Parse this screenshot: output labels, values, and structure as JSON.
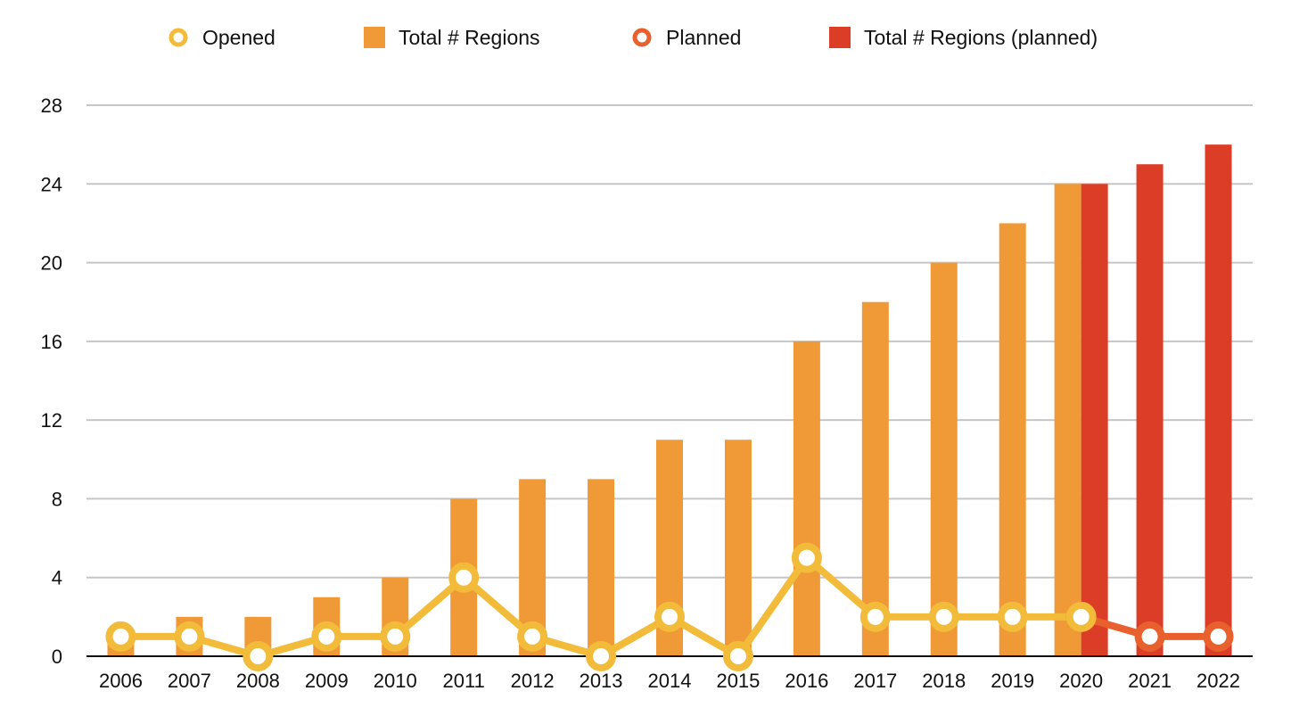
{
  "chart_data": {
    "type": "bar",
    "title": "",
    "xlabel": "",
    "ylabel": "",
    "ylim": [
      0,
      28
    ],
    "yticks": [
      0,
      4,
      8,
      12,
      16,
      20,
      24,
      28
    ],
    "grid": true,
    "legend_position": "top",
    "categories": [
      "2006",
      "2007",
      "2008",
      "2009",
      "2010",
      "2011",
      "2012",
      "2013",
      "2014",
      "2015",
      "2016",
      "2017",
      "2018",
      "2019",
      "2020",
      "2021",
      "2022"
    ],
    "series": [
      {
        "name": "Opened",
        "kind": "line",
        "color": "#f2bc3a",
        "values": [
          1,
          1,
          0,
          1,
          1,
          4,
          1,
          0,
          2,
          0,
          5,
          2,
          2,
          2,
          2,
          null,
          null
        ]
      },
      {
        "name": "Total # Regions",
        "kind": "bar",
        "color": "#f09a37",
        "values": [
          1,
          2,
          2,
          3,
          4,
          8,
          9,
          9,
          11,
          11,
          16,
          18,
          20,
          22,
          24,
          null,
          null
        ]
      },
      {
        "name": "Planned",
        "kind": "line",
        "color": "#e8602d",
        "values": [
          null,
          null,
          null,
          null,
          null,
          null,
          null,
          null,
          null,
          null,
          null,
          null,
          null,
          null,
          2,
          1,
          1
        ]
      },
      {
        "name": "Total # Regions (planned)",
        "kind": "bar",
        "color": "#dc3d27",
        "values": [
          null,
          null,
          null,
          null,
          null,
          null,
          null,
          null,
          null,
          null,
          null,
          null,
          null,
          null,
          24,
          25,
          26
        ]
      }
    ]
  }
}
